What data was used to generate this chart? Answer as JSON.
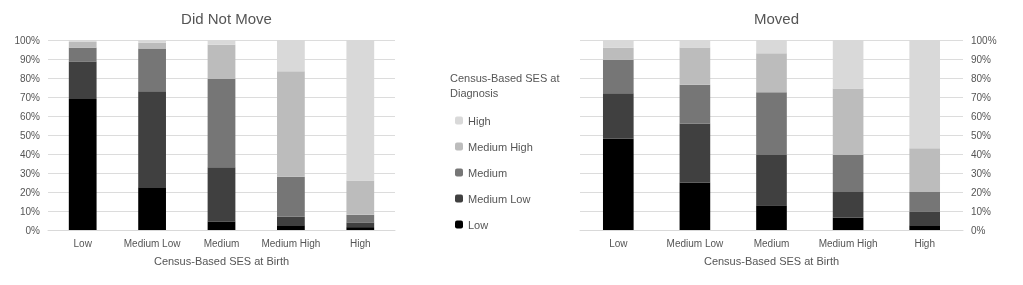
{
  "chart_data": [
    {
      "type": "bar",
      "title": "Did Not Move",
      "xlabel": "Census-Based SES at Birth",
      "legend_title": "Census-Based SES at Diagnosis",
      "categories": [
        "Low",
        "Medium Low",
        "Medium",
        "Medium High",
        "High"
      ],
      "stacked": true,
      "ylim": [
        0,
        100
      ],
      "yticks": [
        {
          "value": 0,
          "label": "0%"
        },
        {
          "value": 10,
          "label": "10%"
        },
        {
          "value": 20,
          "label": "20%"
        },
        {
          "value": 30,
          "label": "30%"
        },
        {
          "value": 40,
          "label": "40%"
        },
        {
          "value": 50,
          "label": "50%"
        },
        {
          "value": 60,
          "label": "60%"
        },
        {
          "value": 70,
          "label": "70%"
        },
        {
          "value": 80,
          "label": "80%"
        },
        {
          "value": 90,
          "label": "90%"
        },
        {
          "value": 100,
          "label": "100%"
        }
      ],
      "grid": "y",
      "legend": "right",
      "series": [
        {
          "name": "Low",
          "color": "#000000",
          "values": [
            69,
            22.5,
            4.5,
            2.5,
            1.5
          ]
        },
        {
          "name": "Medium Low",
          "color": "#404040",
          "values": [
            19.5,
            50.5,
            28.5,
            4.5,
            2.5
          ]
        },
        {
          "name": "Medium",
          "color": "#767676",
          "values": [
            7.5,
            22.5,
            46.5,
            21,
            4
          ]
        },
        {
          "name": "Medium High",
          "color": "#bcbcbc",
          "values": [
            3,
            3,
            18,
            55.5,
            18
          ]
        },
        {
          "name": "High",
          "color": "#d9d9d9",
          "values": [
            1,
            1.5,
            2.5,
            16.5,
            74
          ]
        }
      ]
    },
    {
      "type": "bar",
      "title": "Moved",
      "xlabel": "Census-Based SES at Birth",
      "categories": [
        "Low",
        "Medium Low",
        "Medium",
        "Medium High",
        "High"
      ],
      "stacked": true,
      "ylim": [
        0,
        100
      ],
      "yticks": [
        {
          "value": 0,
          "label": "0%"
        },
        {
          "value": 10,
          "label": "10%"
        },
        {
          "value": 20,
          "label": "20%"
        },
        {
          "value": 30,
          "label": "30%"
        },
        {
          "value": 40,
          "label": "40%"
        },
        {
          "value": 50,
          "label": "50%"
        },
        {
          "value": 60,
          "label": "60%"
        },
        {
          "value": 70,
          "label": "70%"
        },
        {
          "value": 80,
          "label": "80%"
        },
        {
          "value": 90,
          "label": "90%"
        },
        {
          "value": 100,
          "label": "100%"
        }
      ],
      "grid": "y",
      "series": [
        {
          "color": "#000000",
          "values": [
            48,
            25,
            13,
            6.5,
            2.5
          ]
        },
        {
          "color": "#404040",
          "values": [
            24,
            31,
            26.5,
            13.5,
            7
          ]
        },
        {
          "color": "#767676",
          "values": [
            17.5,
            20.5,
            33,
            19.5,
            10.5
          ]
        },
        {
          "color": "#bcbcbc",
          "values": [
            6.5,
            19.5,
            20.5,
            35,
            23
          ]
        },
        {
          "color": "#d9d9d9",
          "values": [
            4,
            4,
            7,
            25.5,
            57
          ]
        }
      ]
    }
  ]
}
